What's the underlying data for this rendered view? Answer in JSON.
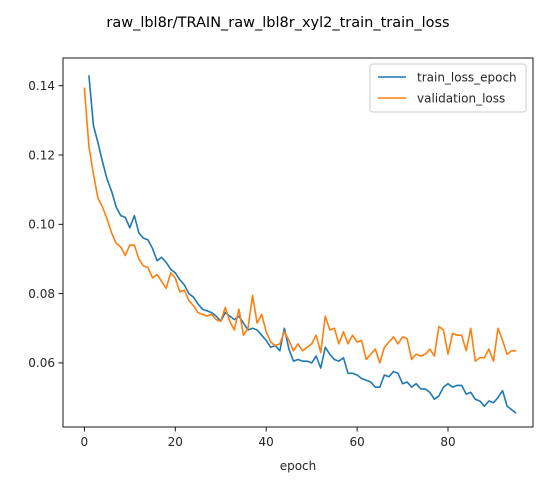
{
  "chart_data": {
    "type": "line",
    "title": "raw_lbl8r/TRAIN_raw_lbl8r_xyl2_train_train_loss",
    "xlabel": "epoch",
    "ylabel": "",
    "xlim": [
      -4.7,
      98.7
    ],
    "ylim": [
      0.0415,
      0.148
    ],
    "xticks": [
      0,
      20,
      40,
      60,
      80
    ],
    "yticks": [
      0.06,
      0.08,
      0.1,
      0.12,
      0.14
    ],
    "ytick_labels": [
      "0.06",
      "0.08",
      "0.10",
      "0.12",
      "0.14"
    ],
    "grid": false,
    "legend_position": "top-right",
    "series": [
      {
        "name": "train_loss_epoch",
        "color": "#1f77b4",
        "x_start": 1,
        "values": [
          0.143,
          0.1285,
          0.1235,
          0.118,
          0.113,
          0.1095,
          0.105,
          0.1025,
          0.102,
          0.099,
          0.1025,
          0.0975,
          0.096,
          0.0955,
          0.093,
          0.0895,
          0.0905,
          0.089,
          0.087,
          0.086,
          0.084,
          0.0825,
          0.08,
          0.079,
          0.077,
          0.0755,
          0.075,
          0.0745,
          0.0735,
          0.072,
          0.0745,
          0.0735,
          0.0725,
          0.0735,
          0.0715,
          0.0695,
          0.07,
          0.0695,
          0.068,
          0.0665,
          0.0645,
          0.065,
          0.0635,
          0.07,
          0.064,
          0.0605,
          0.061,
          0.0605,
          0.0605,
          0.06,
          0.062,
          0.0585,
          0.0645,
          0.0625,
          0.061,
          0.0605,
          0.0615,
          0.057,
          0.057,
          0.0565,
          0.0555,
          0.055,
          0.0545,
          0.053,
          0.053,
          0.0565,
          0.056,
          0.0575,
          0.057,
          0.054,
          0.0545,
          0.053,
          0.054,
          0.0525,
          0.0525,
          0.0515,
          0.0495,
          0.0505,
          0.053,
          0.054,
          0.053,
          0.0535,
          0.0535,
          0.051,
          0.0515,
          0.0495,
          0.049,
          0.0475,
          0.049,
          0.0485,
          0.05,
          0.052,
          0.0475,
          0.0465,
          0.0455
        ]
      },
      {
        "name": "validation_loss",
        "color": "#ff7f0e",
        "x_start": 0,
        "values": [
          0.1395,
          0.1225,
          0.1145,
          0.1075,
          0.105,
          0.1015,
          0.0975,
          0.0945,
          0.0935,
          0.091,
          0.094,
          0.094,
          0.09,
          0.088,
          0.0875,
          0.0845,
          0.0855,
          0.0835,
          0.0815,
          0.086,
          0.0845,
          0.0805,
          0.081,
          0.078,
          0.0765,
          0.0745,
          0.074,
          0.0735,
          0.074,
          0.0725,
          0.072,
          0.076,
          0.072,
          0.0695,
          0.0755,
          0.068,
          0.07,
          0.0795,
          0.0715,
          0.074,
          0.069,
          0.066,
          0.065,
          0.0655,
          0.069,
          0.0665,
          0.0635,
          0.0655,
          0.0635,
          0.0645,
          0.0655,
          0.068,
          0.063,
          0.0735,
          0.0695,
          0.07,
          0.0655,
          0.069,
          0.0655,
          0.068,
          0.066,
          0.0665,
          0.061,
          0.0625,
          0.064,
          0.06,
          0.0645,
          0.066,
          0.0675,
          0.0655,
          0.0675,
          0.067,
          0.061,
          0.0625,
          0.062,
          0.0625,
          0.064,
          0.062,
          0.0705,
          0.0695,
          0.0625,
          0.0685,
          0.068,
          0.068,
          0.0635,
          0.07,
          0.0605,
          0.0615,
          0.0615,
          0.064,
          0.0605,
          0.07,
          0.0665,
          0.0625,
          0.0635,
          0.0635
        ]
      }
    ]
  }
}
